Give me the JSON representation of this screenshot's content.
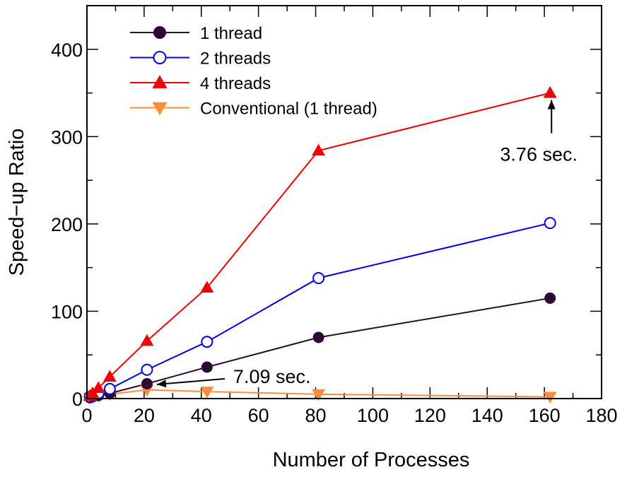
{
  "chart_data": {
    "type": "line",
    "title": "",
    "xlabel": "Number of Processes",
    "ylabel": "Speed−up Ratio",
    "xlim": [
      0,
      180
    ],
    "ylim": [
      0,
      450
    ],
    "xticks": [
      0,
      20,
      40,
      60,
      80,
      100,
      120,
      140,
      160,
      180
    ],
    "xtick_labels": [
      "0",
      "20",
      "40",
      "60",
      "80",
      "100",
      "120",
      "140",
      "160",
      "180"
    ],
    "yticks": [
      0,
      100,
      200,
      300,
      400
    ],
    "ytick_labels": [
      "0",
      "100",
      "200",
      "300",
      "400"
    ],
    "grid": false,
    "legend_position": "top-left",
    "series": [
      {
        "name": "1 thread",
        "color": "#2b0a33",
        "marker": "filled-circle",
        "x": [
          1,
          2,
          4,
          8,
          21,
          42,
          81,
          162
        ],
        "y": [
          1,
          2,
          3.5,
          6,
          17,
          36,
          70,
          115
        ]
      },
      {
        "name": "2 threads",
        "color": "#0000e0",
        "marker": "open-circle",
        "x": [
          1,
          2,
          4,
          8,
          21,
          42,
          81,
          162
        ],
        "y": [
          2,
          3,
          6,
          11,
          33,
          65,
          138,
          201
        ]
      },
      {
        "name": "4 threads",
        "color": "#ee0000",
        "marker": "filled-triangle-up",
        "x": [
          1,
          2,
          4,
          8,
          21,
          42,
          81,
          162
        ],
        "y": [
          3,
          6,
          12,
          25,
          66,
          127,
          284,
          350
        ]
      },
      {
        "name": "Conventional (1 thread)",
        "color": "#ff8c3a",
        "marker": "filled-triangle-down",
        "x": [
          1,
          2,
          4,
          8,
          21,
          42,
          81,
          162
        ],
        "y": [
          1,
          1.5,
          3,
          5,
          10,
          8,
          5,
          2
        ]
      }
    ],
    "annotations": [
      {
        "text": "7.09 sec.",
        "x": 21,
        "y": 17,
        "arrow": "from-left-pointing-to-point"
      },
      {
        "text": "3.76 sec.",
        "x": 162,
        "y": 350,
        "arrow": "from-below-pointing-to-point"
      }
    ]
  }
}
